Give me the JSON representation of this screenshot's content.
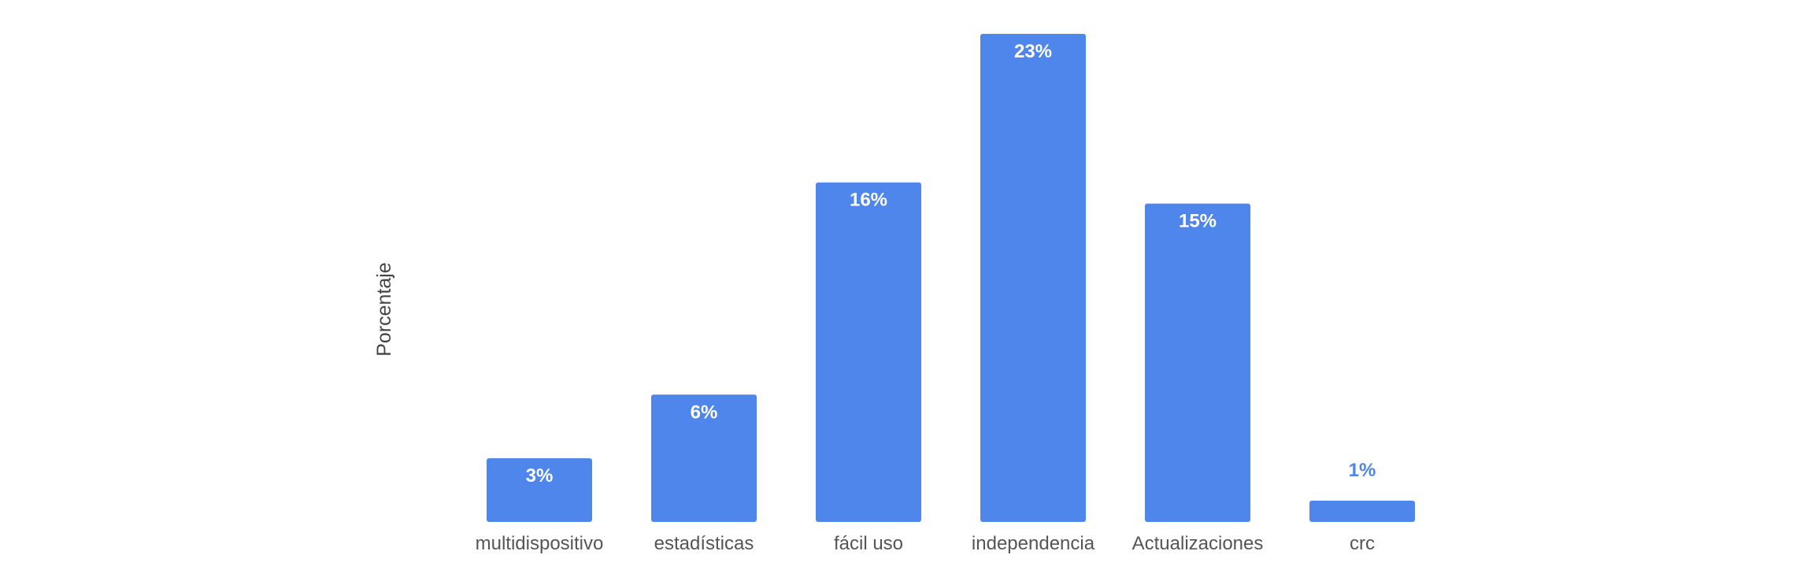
{
  "chart_data": {
    "type": "bar",
    "title": "",
    "xlabel": "",
    "ylabel": "Porcentaje",
    "categories": [
      "multidispositivo",
      "estadísticas",
      "fácil uso",
      "independencia",
      "Actualizaciones",
      "crc"
    ],
    "values": [
      3,
      6,
      16,
      23,
      15,
      1
    ],
    "value_labels": [
      "3%",
      "6%",
      "16%",
      "23%",
      "15%",
      "1%"
    ],
    "unit": "%",
    "ylim": [
      0,
      23
    ],
    "grid": false,
    "legend": "none",
    "colors": {
      "bar": "#4f86ec",
      "label_inside": "#ffffff",
      "label_outside": "#4f86ec",
      "axis_text": "#555555"
    }
  }
}
